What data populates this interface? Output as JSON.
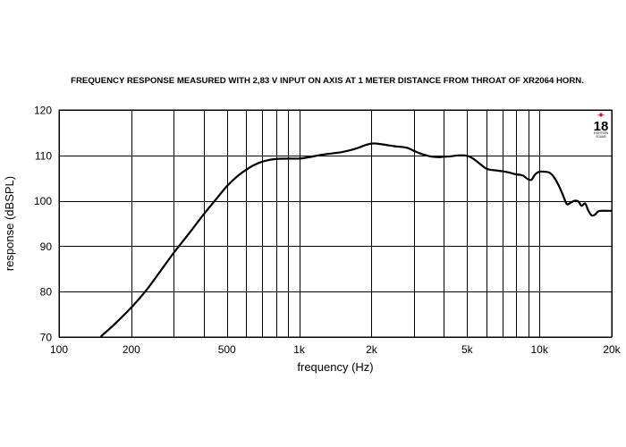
{
  "chart_data": {
    "type": "line",
    "title": "FREQUENCY RESPONSE MEASURED WITH 2,83 V INPUT ON AXIS AT 1 METER DISTANCE FROM THROAT OF XR2064 HORN.",
    "xlabel": "frequency (Hz)",
    "ylabel": "response (dBSPL)",
    "x_scale": "log",
    "xlim": [
      100,
      20000
    ],
    "ylim": [
      70,
      120
    ],
    "grid": true,
    "x_ticks": [
      {
        "value": 100,
        "label": "100"
      },
      {
        "value": 200,
        "label": "200"
      },
      {
        "value": 500,
        "label": "500"
      },
      {
        "value": 1000,
        "label": "1k"
      },
      {
        "value": 2000,
        "label": "2k"
      },
      {
        "value": 5000,
        "label": "5k"
      },
      {
        "value": 10000,
        "label": "10k"
      },
      {
        "value": 20000,
        "label": "20k"
      }
    ],
    "x_gridlines": [
      100,
      200,
      300,
      400,
      500,
      600,
      700,
      800,
      900,
      1000,
      2000,
      3000,
      4000,
      5000,
      6000,
      7000,
      8000,
      9000,
      10000,
      20000
    ],
    "y_ticks": [
      70,
      80,
      90,
      100,
      110,
      120
    ],
    "series": [
      {
        "x": [
          150,
          170,
          200,
          230,
          260,
          300,
          350,
          400,
          450,
          500,
          550,
          600,
          650,
          700,
          750,
          800,
          900,
          1000,
          1100,
          1200,
          1300,
          1500,
          1700,
          1900,
          2000,
          2100,
          2300,
          2500,
          2800,
          3000,
          3200,
          3500,
          3800,
          4000,
          4300,
          4600,
          5000,
          5300,
          5600,
          6000,
          6300,
          6600,
          7000,
          7500,
          8000,
          8500,
          9000,
          9300,
          9600,
          10000,
          10500,
          11000,
          11500,
          12000,
          12500,
          13000,
          13500,
          14000,
          14500,
          15000,
          15500,
          16000,
          16500,
          17000,
          17500,
          18000,
          19000,
          20000
        ],
        "values": [
          70.2,
          72.8,
          76.5,
          80.2,
          84.0,
          88.5,
          93.0,
          97.0,
          100.3,
          103.2,
          105.3,
          106.8,
          107.9,
          108.6,
          109.0,
          109.2,
          109.3,
          109.3,
          109.6,
          110.0,
          110.3,
          110.7,
          111.4,
          112.3,
          112.6,
          112.6,
          112.3,
          112.0,
          111.7,
          111.0,
          110.4,
          109.8,
          109.6,
          109.7,
          109.8,
          110.0,
          109.9,
          109.3,
          108.3,
          107.1,
          106.8,
          106.7,
          106.5,
          106.2,
          105.8,
          105.6,
          104.7,
          104.7,
          105.8,
          106.4,
          106.4,
          106.2,
          105.2,
          103.5,
          101.4,
          99.3,
          99.6,
          100.0,
          99.9,
          98.9,
          99.4,
          97.8,
          96.8,
          96.9,
          97.6,
          97.8,
          97.8,
          97.8
        ]
      }
    ]
  },
  "logo": {
    "number": "18",
    "line1": "EIGHTEEN",
    "line2": "SOUND"
  }
}
